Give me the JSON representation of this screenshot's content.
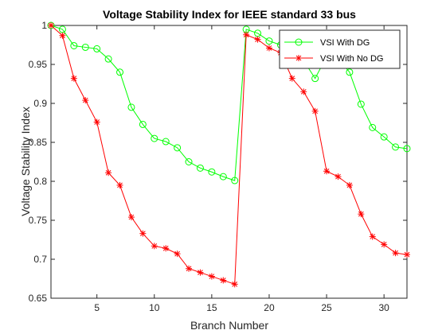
{
  "chart_data": {
    "type": "line",
    "title": "Voltage Stability Index for IEEE standard 33 bus",
    "xlabel": "Branch Number",
    "ylabel": "Voltage Stability Index",
    "xlim": [
      1,
      32
    ],
    "ylim": [
      0.65,
      1.0
    ],
    "grid": false,
    "legend_position": "top-right",
    "xticks": [
      5,
      10,
      15,
      20,
      25,
      30
    ],
    "xtick_labels": [
      "5",
      "10",
      "15",
      "20",
      "25",
      "30"
    ],
    "yticks": [
      0.65,
      0.7,
      0.75,
      0.8,
      0.85,
      0.9,
      0.95,
      1.0
    ],
    "ytick_labels": [
      "0.65",
      "0.7",
      "0.75",
      "0.8",
      "0.85",
      "0.9",
      "0.95",
      "1"
    ],
    "x": [
      1,
      2,
      3,
      4,
      5,
      6,
      7,
      8,
      9,
      10,
      11,
      12,
      13,
      14,
      15,
      16,
      17,
      18,
      19,
      20,
      21,
      22,
      23,
      24,
      25,
      26,
      27,
      28,
      29,
      30,
      31,
      32
    ],
    "series": [
      {
        "name": "VSI With DG",
        "color": "#00ff00",
        "marker": "circle",
        "values": [
          1.0,
          0.995,
          0.974,
          0.972,
          0.97,
          0.957,
          0.94,
          0.895,
          0.873,
          0.855,
          0.851,
          0.843,
          0.825,
          0.817,
          0.812,
          0.806,
          0.801,
          0.995,
          0.99,
          0.98,
          0.975,
          0.965,
          0.955,
          0.932,
          0.96,
          0.958,
          0.94,
          0.899,
          0.869,
          0.857,
          0.844,
          0.842
        ]
      },
      {
        "name": "VSI With No DG",
        "color": "#ff0000",
        "marker": "asterisk",
        "values": [
          1.0,
          0.987,
          0.932,
          0.904,
          0.876,
          0.811,
          0.795,
          0.754,
          0.733,
          0.717,
          0.714,
          0.707,
          0.688,
          0.683,
          0.678,
          0.673,
          0.668,
          0.988,
          0.982,
          0.971,
          0.965,
          0.932,
          0.915,
          0.89,
          0.813,
          0.806,
          0.795,
          0.758,
          0.729,
          0.719,
          0.708,
          0.706
        ]
      }
    ]
  }
}
